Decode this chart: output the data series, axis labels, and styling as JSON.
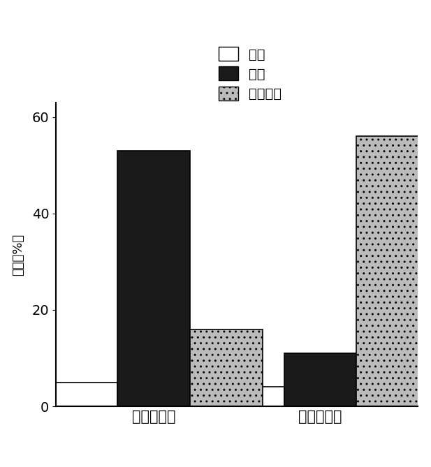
{
  "categories": [
    "白养小球藻",
    "异养小球藻"
  ],
  "series": {
    "气体": [
      5,
      4
    ],
    "焦炭": [
      53,
      11
    ],
    "生物质油": [
      16,
      56
    ]
  },
  "bar_colors": {
    "气体": "#ffffff",
    "焦炭": "#1a1a1a",
    "生物质油": "#bbbbbb"
  },
  "bar_hatches": {
    "气体": "",
    "焦炭": "",
    "生物质油": ".."
  },
  "bar_edge_colors": {
    "气体": "#000000",
    "焦炭": "#000000",
    "生物质油": "#000000"
  },
  "legend_labels": [
    "气体",
    "焦炭",
    "生物质油"
  ],
  "ylabel_chars": [
    "产",
    "量",
    "（",
    "%",
    "）"
  ],
  "ylim": [
    0,
    63
  ],
  "yticks": [
    0,
    20,
    40,
    60
  ],
  "bar_width": 0.2,
  "group_positions": [
    0.32,
    0.78
  ],
  "figsize": [
    6.17,
    6.69
  ],
  "dpi": 100,
  "background_color": "#ffffff",
  "legend_fontsize": 14,
  "tick_fontsize": 14,
  "ylabel_fontsize": 13,
  "xlabel_fontsize": 15
}
